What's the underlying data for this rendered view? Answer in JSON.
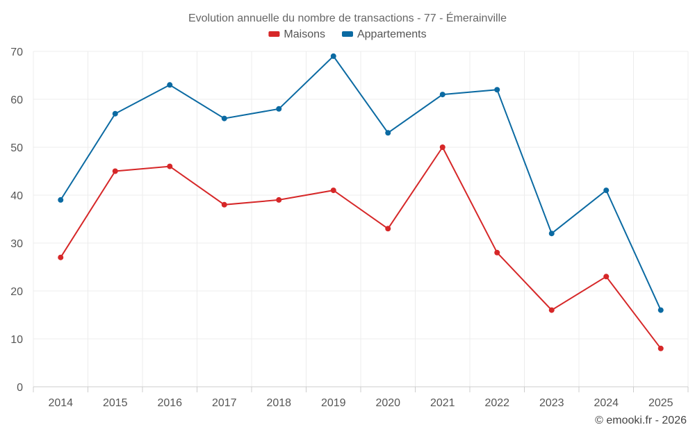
{
  "chart_data": {
    "type": "line",
    "title": "Evolution annuelle du nombre de transactions - 77 - Émerainville",
    "categories": [
      "2014",
      "2015",
      "2016",
      "2017",
      "2018",
      "2019",
      "2020",
      "2021",
      "2022",
      "2023",
      "2024",
      "2025"
    ],
    "series": [
      {
        "name": "Maisons",
        "color": "#d62728",
        "values": [
          27,
          45,
          46,
          38,
          39,
          41,
          33,
          50,
          28,
          16,
          23,
          8
        ]
      },
      {
        "name": "Appartements",
        "color": "#0b6aa2",
        "values": [
          39,
          57,
          63,
          56,
          58,
          69,
          53,
          61,
          62,
          32,
          41,
          16
        ]
      }
    ],
    "ylim": [
      0,
      70
    ],
    "yticks": [
      0,
      10,
      20,
      30,
      40,
      50,
      60,
      70
    ],
    "grid": true,
    "legend": "top-center",
    "xlabel": "",
    "ylabel": ""
  },
  "credit": "© emooki.fr - 2026"
}
